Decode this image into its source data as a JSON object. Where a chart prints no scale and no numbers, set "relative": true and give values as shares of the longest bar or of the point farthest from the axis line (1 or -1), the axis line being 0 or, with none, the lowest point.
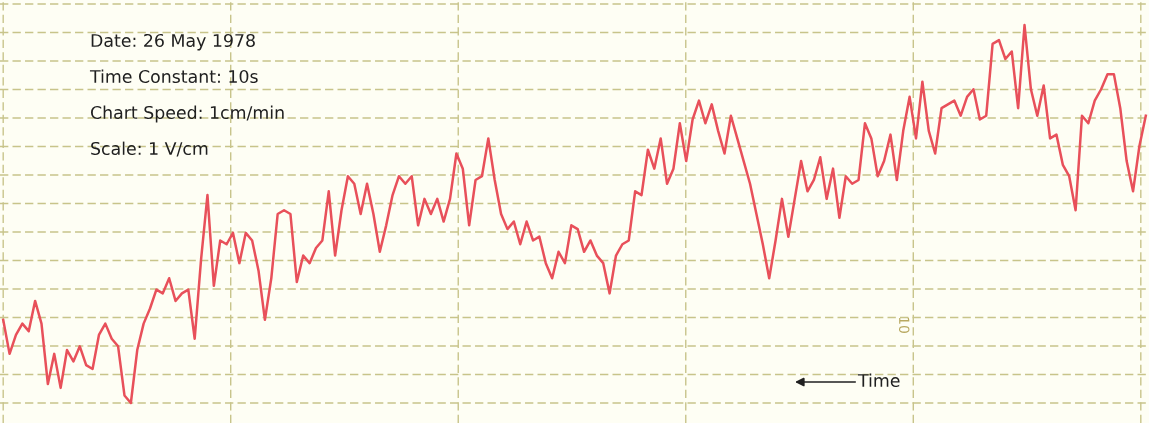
{
  "chart_data": {
    "type": "line",
    "relative": true,
    "color": "#e8505a",
    "grid": true,
    "annotations": [
      "Date: 26 May 1978",
      "Time Constant: 10s",
      "Chart Speed: 1cm/min",
      "Scale: 1 V/cm",
      "10",
      "Time"
    ],
    "categories": [
      null,
      null,
      null,
      null,
      null,
      null,
      null,
      null,
      null,
      null,
      null,
      null,
      null,
      null,
      null,
      null,
      null,
      null,
      null,
      null,
      null,
      null,
      null,
      null,
      null,
      null,
      null,
      null,
      null,
      null,
      null,
      null,
      null,
      null,
      null,
      null,
      null,
      null,
      null,
      null,
      null,
      null,
      null,
      null,
      null,
      null,
      null,
      null,
      null,
      null,
      null,
      null,
      null,
      null,
      null,
      null,
      null,
      null,
      null,
      null,
      null,
      null,
      null,
      null,
      null,
      null,
      null,
      null,
      null,
      null,
      null,
      null,
      null,
      null,
      null,
      null,
      null,
      null,
      null,
      null,
      null,
      null,
      null,
      null,
      null,
      null,
      null,
      null,
      null,
      null,
      null,
      null,
      null,
      null,
      null,
      null,
      null,
      null,
      null,
      null,
      null,
      null,
      null,
      null,
      null,
      null,
      null,
      null,
      null,
      null,
      null,
      null,
      null,
      null,
      null,
      null,
      null,
      null,
      null,
      null,
      null,
      null,
      null,
      null,
      null,
      null,
      null,
      null,
      null,
      null,
      null,
      null,
      null,
      null,
      null,
      null,
      null,
      null,
      null,
      null,
      null,
      null,
      null,
      null,
      null,
      null,
      null,
      null,
      null,
      null,
      null,
      null,
      null,
      null,
      null,
      null,
      null,
      null,
      null,
      null,
      null,
      null,
      null,
      null,
      null,
      null,
      null,
      null,
      null,
      null,
      null,
      null,
      null,
      null,
      null,
      null,
      null,
      null,
      null,
      null
    ],
    "values": [
      0.22,
      0.13,
      0.18,
      0.21,
      0.19,
      0.27,
      0.21,
      0.05,
      0.13,
      0.04,
      0.14,
      0.11,
      0.15,
      0.1,
      0.09,
      0.18,
      0.21,
      0.17,
      0.15,
      0.02,
      0.0,
      0.14,
      0.21,
      0.25,
      0.3,
      0.29,
      0.33,
      0.27,
      0.29,
      0.3,
      0.17,
      0.38,
      0.55,
      0.31,
      0.43,
      0.42,
      0.45,
      0.37,
      0.45,
      0.43,
      0.35,
      0.22,
      0.33,
      0.5,
      0.51,
      0.5,
      0.32,
      0.39,
      0.37,
      0.41,
      0.43,
      0.56,
      0.39,
      0.51,
      0.6,
      0.58,
      0.5,
      0.58,
      0.5,
      0.4,
      0.47,
      0.55,
      0.6,
      0.58,
      0.6,
      0.47,
      0.54,
      0.5,
      0.54,
      0.48,
      0.54,
      0.66,
      0.62,
      0.47,
      0.59,
      0.6,
      0.7,
      0.59,
      0.5,
      0.46,
      0.48,
      0.42,
      0.48,
      0.43,
      0.44,
      0.37,
      0.33,
      0.4,
      0.37,
      0.47,
      0.46,
      0.4,
      0.43,
      0.39,
      0.37,
      0.29,
      0.39,
      0.42,
      0.43,
      0.56,
      0.55,
      0.67,
      0.62,
      0.7,
      0.58,
      0.62,
      0.74,
      0.64,
      0.75,
      0.8,
      0.74,
      0.79,
      0.72,
      0.66,
      0.76,
      0.7,
      0.64,
      0.58,
      0.5,
      0.42,
      0.33,
      0.43,
      0.54,
      0.44,
      0.54,
      0.64,
      0.56,
      0.59,
      0.65,
      0.54,
      0.62,
      0.49,
      0.6,
      0.58,
      0.59,
      0.74,
      0.7,
      0.6,
      0.64,
      0.71,
      0.59,
      0.72,
      0.81,
      0.7,
      0.85,
      0.72,
      0.66,
      0.78,
      0.79,
      0.8,
      0.76,
      0.81,
      0.83,
      0.75,
      0.76,
      0.95,
      0.96,
      0.91,
      0.93,
      0.78,
      1.0,
      0.83,
      0.76,
      0.84,
      0.7,
      0.71,
      0.63,
      0.6,
      0.51,
      0.76,
      0.74,
      0.8,
      0.83,
      0.87,
      0.87,
      0.78,
      0.64,
      0.56,
      0.68,
      0.76
    ]
  }
}
